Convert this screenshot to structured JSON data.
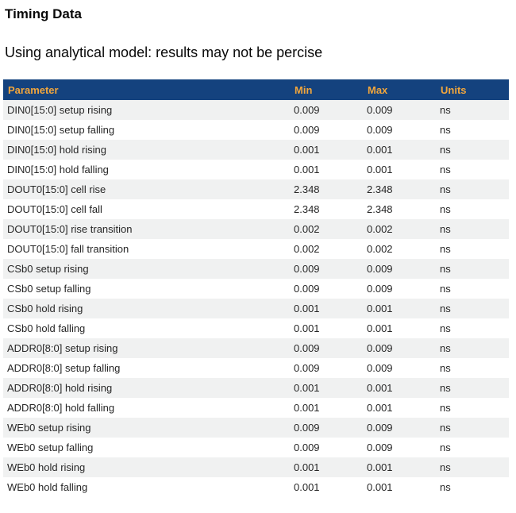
{
  "page": {
    "title": "Timing Data",
    "subtitle": "Using analytical model: results may not be percise"
  },
  "table": {
    "columns": [
      "Parameter",
      "Min",
      "Max",
      "Units"
    ],
    "rows": [
      {
        "parameter": "DIN0[15:0] setup rising",
        "min": "0.009",
        "max": "0.009",
        "units": "ns"
      },
      {
        "parameter": "DIN0[15:0] setup falling",
        "min": "0.009",
        "max": "0.009",
        "units": "ns"
      },
      {
        "parameter": "DIN0[15:0] hold rising",
        "min": "0.001",
        "max": "0.001",
        "units": "ns"
      },
      {
        "parameter": "DIN0[15:0] hold falling",
        "min": "0.001",
        "max": "0.001",
        "units": "ns"
      },
      {
        "parameter": "DOUT0[15:0] cell rise",
        "min": "2.348",
        "max": "2.348",
        "units": "ns"
      },
      {
        "parameter": "DOUT0[15:0] cell fall",
        "min": "2.348",
        "max": "2.348",
        "units": "ns"
      },
      {
        "parameter": "DOUT0[15:0] rise transition",
        "min": "0.002",
        "max": "0.002",
        "units": "ns"
      },
      {
        "parameter": "DOUT0[15:0] fall transition",
        "min": "0.002",
        "max": "0.002",
        "units": "ns"
      },
      {
        "parameter": "CSb0 setup rising",
        "min": "0.009",
        "max": "0.009",
        "units": "ns"
      },
      {
        "parameter": "CSb0 setup falling",
        "min": "0.009",
        "max": "0.009",
        "units": "ns"
      },
      {
        "parameter": "CSb0 hold rising",
        "min": "0.001",
        "max": "0.001",
        "units": "ns"
      },
      {
        "parameter": "CSb0 hold falling",
        "min": "0.001",
        "max": "0.001",
        "units": "ns"
      },
      {
        "parameter": "ADDR0[8:0] setup rising",
        "min": "0.009",
        "max": "0.009",
        "units": "ns"
      },
      {
        "parameter": "ADDR0[8:0] setup falling",
        "min": "0.009",
        "max": "0.009",
        "units": "ns"
      },
      {
        "parameter": "ADDR0[8:0] hold rising",
        "min": "0.001",
        "max": "0.001",
        "units": "ns"
      },
      {
        "parameter": "ADDR0[8:0] hold falling",
        "min": "0.001",
        "max": "0.001",
        "units": "ns"
      },
      {
        "parameter": "WEb0 setup rising",
        "min": "0.009",
        "max": "0.009",
        "units": "ns"
      },
      {
        "parameter": "WEb0 setup falling",
        "min": "0.009",
        "max": "0.009",
        "units": "ns"
      },
      {
        "parameter": "WEb0 hold rising",
        "min": "0.001",
        "max": "0.001",
        "units": "ns"
      },
      {
        "parameter": "WEb0 hold falling",
        "min": "0.001",
        "max": "0.001",
        "units": "ns"
      }
    ]
  },
  "colors": {
    "header_bg": "#14427e",
    "header_text": "#f2a63c",
    "row_alt_bg": "#f0f1f1",
    "row_text": "#262626"
  }
}
